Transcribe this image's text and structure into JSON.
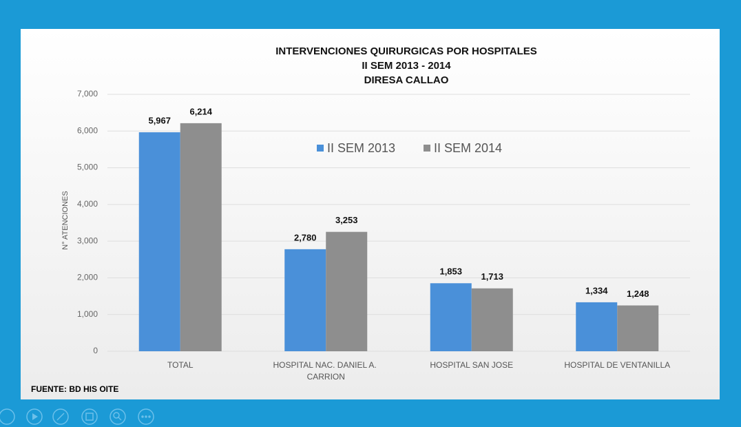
{
  "chart_data": {
    "type": "bar",
    "title": [
      "INTERVENCIONES QUIRURGICAS POR  HOSPITALES",
      "II SEM 2013 - 2014",
      "DIRESA CALLAO"
    ],
    "y_label": "N° ATENCIONES",
    "categories": [
      "TOTAL",
      "HOSPITAL NAC. DANIEL A. CARRION",
      "HOSPITAL SAN JOSE",
      "HOSPITAL DE VENTANILLA"
    ],
    "series": [
      {
        "name": "II SEM 2013",
        "color": "#4a90d9",
        "values": [
          5967,
          2780,
          1853,
          1334
        ],
        "value_labels": [
          "5,967",
          "2,780",
          "1,853",
          "1,334"
        ]
      },
      {
        "name": "II SEM 2014",
        "color": "#8e8e8e",
        "values": [
          6214,
          3253,
          1713,
          1248
        ],
        "value_labels": [
          "6,214",
          "3,253",
          "1,713",
          "1,248"
        ]
      }
    ],
    "ylim": [
      0,
      7000
    ],
    "yticks": [
      0,
      {
        "value": 1000,
        "label": "1,000"
      },
      {
        "value": 2000,
        "label": "2,000"
      },
      {
        "value": 3000,
        "label": "3,000"
      },
      {
        "value": 4000,
        "label": "4,000"
      },
      {
        "value": 5000,
        "label": "5,000"
      },
      {
        "value": 6000,
        "label": "6,000"
      },
      {
        "value": 7000,
        "label": "7,000"
      }
    ],
    "grid": true,
    "legend": "top",
    "source": "FUENTE:  BD HIS OITE"
  }
}
